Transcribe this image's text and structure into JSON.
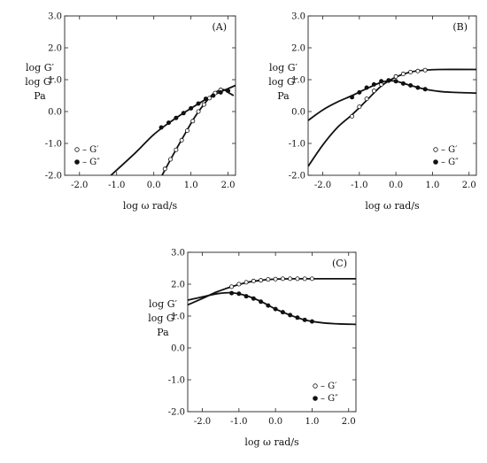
{
  "chart_data": [
    {
      "panel": "(A)",
      "type": "line",
      "xlabel": "log ω  rad/s",
      "ylabel": [
        "log G′",
        "log G″",
        "Pa"
      ],
      "xlim": [
        -2.4,
        2.2
      ],
      "ylim": [
        -2.0,
        3.0
      ],
      "xticks": [
        "-2.0",
        "-1.0",
        "0.0",
        "1.0",
        "2.0"
      ],
      "yticks": [
        "3.0",
        "2.0",
        "1.0",
        "0.0",
        "-1.0",
        "-2.0"
      ],
      "legend": "bottom-left",
      "series": [
        {
          "name": "– G′",
          "marker": "open-circle",
          "points": [
            [
              0.3,
              -1.8
            ],
            [
              0.45,
              -1.5
            ],
            [
              0.6,
              -1.2
            ],
            [
              0.75,
              -0.9
            ],
            [
              0.9,
              -0.6
            ],
            [
              1.05,
              -0.3
            ],
            [
              1.2,
              0.0
            ],
            [
              1.35,
              0.22
            ],
            [
              1.5,
              0.42
            ],
            [
              1.65,
              0.58
            ],
            [
              1.8,
              0.68
            ]
          ],
          "curve": [
            [
              0.2,
              -2.05
            ],
            [
              0.5,
              -1.4
            ],
            [
              0.8,
              -0.78
            ],
            [
              1.1,
              -0.18
            ],
            [
              1.4,
              0.3
            ],
            [
              1.6,
              0.55
            ],
            [
              1.8,
              0.68
            ],
            [
              1.9,
              0.68
            ],
            [
              2.0,
              0.6
            ],
            [
              2.15,
              0.5
            ]
          ]
        },
        {
          "name": "– G″",
          "marker": "filled-circle",
          "points": [
            [
              0.2,
              -0.5
            ],
            [
              0.4,
              -0.35
            ],
            [
              0.6,
              -0.2
            ],
            [
              0.8,
              -0.05
            ],
            [
              1.0,
              0.1
            ],
            [
              1.2,
              0.25
            ],
            [
              1.4,
              0.4
            ],
            [
              1.6,
              0.5
            ],
            [
              1.8,
              0.6
            ],
            [
              2.0,
              0.65
            ]
          ],
          "curve": [
            [
              -1.2,
              -2.05
            ],
            [
              -0.5,
              -1.3
            ],
            [
              0.0,
              -0.72
            ],
            [
              0.5,
              -0.28
            ],
            [
              1.0,
              0.1
            ],
            [
              1.5,
              0.45
            ],
            [
              1.8,
              0.62
            ],
            [
              2.0,
              0.72
            ],
            [
              2.2,
              0.82
            ]
          ]
        }
      ]
    },
    {
      "panel": "(B)",
      "type": "line",
      "xlabel": "log ω  rad/s",
      "ylabel": [
        "log G′",
        "log G″",
        "Pa"
      ],
      "xlim": [
        -2.4,
        2.2
      ],
      "ylim": [
        -2.0,
        3.0
      ],
      "xticks": [
        "-2.0",
        "-1.0",
        "0.0",
        "1.0",
        "2.0"
      ],
      "yticks": [
        "3.0",
        "2.0",
        "1.0",
        "0.0",
        "-1.0",
        "-2.0"
      ],
      "legend": "bottom-right",
      "series": [
        {
          "name": "– G′",
          "marker": "open-circle",
          "points": [
            [
              -1.2,
              -0.15
            ],
            [
              -1.0,
              0.15
            ],
            [
              -0.8,
              0.4
            ],
            [
              -0.6,
              0.65
            ],
            [
              -0.4,
              0.85
            ],
            [
              -0.2,
              0.98
            ],
            [
              0.0,
              1.1
            ],
            [
              0.2,
              1.18
            ],
            [
              0.4,
              1.24
            ],
            [
              0.6,
              1.27
            ],
            [
              0.8,
              1.3
            ]
          ],
          "curve": [
            [
              -2.4,
              -1.72
            ],
            [
              -2.0,
              -1.05
            ],
            [
              -1.6,
              -0.5
            ],
            [
              -1.2,
              -0.1
            ],
            [
              -0.8,
              0.35
            ],
            [
              -0.4,
              0.8
            ],
            [
              0.0,
              1.08
            ],
            [
              0.4,
              1.24
            ],
            [
              0.8,
              1.3
            ],
            [
              1.2,
              1.32
            ],
            [
              2.2,
              1.32
            ]
          ]
        },
        {
          "name": "– G″",
          "marker": "filled-circle",
          "points": [
            [
              -1.2,
              0.45
            ],
            [
              -1.0,
              0.6
            ],
            [
              -0.8,
              0.75
            ],
            [
              -0.6,
              0.85
            ],
            [
              -0.4,
              0.95
            ],
            [
              -0.2,
              0.97
            ],
            [
              0.0,
              0.95
            ],
            [
              0.2,
              0.88
            ],
            [
              0.4,
              0.82
            ],
            [
              0.6,
              0.75
            ],
            [
              0.8,
              0.7
            ]
          ],
          "curve": [
            [
              -2.4,
              -0.28
            ],
            [
              -2.0,
              0.05
            ],
            [
              -1.6,
              0.3
            ],
            [
              -1.2,
              0.5
            ],
            [
              -0.8,
              0.72
            ],
            [
              -0.4,
              0.92
            ],
            [
              -0.2,
              0.96
            ],
            [
              0.0,
              0.95
            ],
            [
              0.4,
              0.82
            ],
            [
              0.8,
              0.7
            ],
            [
              1.2,
              0.63
            ],
            [
              1.6,
              0.6
            ],
            [
              2.2,
              0.58
            ]
          ]
        }
      ]
    },
    {
      "panel": "(C)",
      "type": "line",
      "xlabel": "log ω  rad/s",
      "ylabel": [
        "log G′",
        "log G″",
        "Pa"
      ],
      "xlim": [
        -2.4,
        2.2
      ],
      "ylim": [
        -2.0,
        3.0
      ],
      "xticks": [
        "-2.0",
        "-1.0",
        "0.0",
        "1.0",
        "2.0"
      ],
      "yticks": [
        "3.0",
        "2.0",
        "1.0",
        "0.0",
        "-1.0",
        "-2.0"
      ],
      "legend": "bottom-right",
      "series": [
        {
          "name": "– G′",
          "marker": "open-circle",
          "points": [
            [
              -1.2,
              1.92
            ],
            [
              -1.0,
              2.0
            ],
            [
              -0.8,
              2.06
            ],
            [
              -0.6,
              2.1
            ],
            [
              -0.4,
              2.12
            ],
            [
              -0.2,
              2.15
            ],
            [
              0.0,
              2.16
            ],
            [
              0.2,
              2.17
            ],
            [
              0.4,
              2.17
            ],
            [
              0.6,
              2.17
            ],
            [
              0.8,
              2.17
            ],
            [
              1.0,
              2.17
            ]
          ],
          "curve": [
            [
              -2.4,
              1.35
            ],
            [
              -2.0,
              1.55
            ],
            [
              -1.6,
              1.76
            ],
            [
              -1.2,
              1.92
            ],
            [
              -0.8,
              2.05
            ],
            [
              -0.4,
              2.12
            ],
            [
              0.0,
              2.16
            ],
            [
              0.6,
              2.17
            ],
            [
              2.2,
              2.17
            ]
          ]
        },
        {
          "name": "– G″",
          "marker": "filled-circle",
          "points": [
            [
              -1.2,
              1.72
            ],
            [
              -1.0,
              1.7
            ],
            [
              -0.8,
              1.62
            ],
            [
              -0.6,
              1.55
            ],
            [
              -0.4,
              1.45
            ],
            [
              -0.2,
              1.33
            ],
            [
              0.0,
              1.22
            ],
            [
              0.2,
              1.12
            ],
            [
              0.4,
              1.03
            ],
            [
              0.6,
              0.95
            ],
            [
              0.8,
              0.88
            ],
            [
              1.0,
              0.83
            ]
          ],
          "curve": [
            [
              -2.4,
              1.5
            ],
            [
              -2.0,
              1.6
            ],
            [
              -1.6,
              1.7
            ],
            [
              -1.2,
              1.73
            ],
            [
              -0.8,
              1.64
            ],
            [
              -0.4,
              1.46
            ],
            [
              0.0,
              1.22
            ],
            [
              0.4,
              1.03
            ],
            [
              0.8,
              0.88
            ],
            [
              1.2,
              0.8
            ],
            [
              1.6,
              0.76
            ],
            [
              2.2,
              0.74
            ]
          ]
        }
      ]
    }
  ]
}
